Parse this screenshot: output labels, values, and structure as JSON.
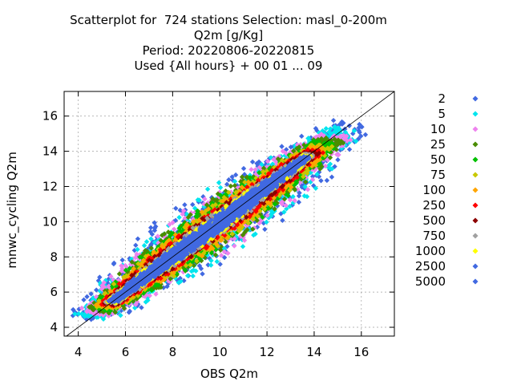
{
  "chart_data": {
    "type": "scatter",
    "title_lines": [
      "Scatterplot for  724 stations Selection: masl_0-200m",
      "Q2m [g/Kg]",
      "Period: 20220806-20220815",
      "Used {All hours} + 00 01 ... 09"
    ],
    "xlabel": "OBS Q2m",
    "ylabel": "mnwc_cycling Q2m",
    "xlim": [
      3.4,
      17.4
    ],
    "ylim": [
      3.5,
      17.4
    ],
    "xticks": [
      4,
      6,
      8,
      10,
      12,
      14,
      16
    ],
    "yticks": [
      4,
      6,
      8,
      10,
      12,
      14,
      16
    ],
    "grid": true,
    "reference_line": "y = x",
    "legend_placement": "right",
    "legend_title": "",
    "series": [
      {
        "name": "2",
        "color": "#4169e1",
        "band": [
          6.0,
          1.6
        ],
        "n": 110
      },
      {
        "name": "5",
        "color": "#00e5ee",
        "band": [
          5.2,
          1.45
        ],
        "n": 140
      },
      {
        "name": "10",
        "color": "#ee82ee",
        "band": [
          4.3,
          1.3
        ],
        "n": 150
      },
      {
        "name": "25",
        "color": "#4a8c00",
        "band": [
          3.6,
          1.15
        ],
        "n": 170
      },
      {
        "name": "50",
        "color": "#00c000",
        "band": [
          3.0,
          1.0
        ],
        "n": 170
      },
      {
        "name": "75",
        "color": "#c8c800",
        "band": [
          2.6,
          0.9
        ],
        "n": 160
      },
      {
        "name": "100",
        "color": "#ffa500",
        "band": [
          2.25,
          0.82
        ],
        "n": 160
      },
      {
        "name": "250",
        "color": "#ff0000",
        "band": [
          1.85,
          0.72
        ],
        "n": 170
      },
      {
        "name": "500",
        "color": "#8b0000",
        "band": [
          1.5,
          0.6
        ],
        "n": 160
      },
      {
        "name": "750",
        "color": "#a0a0a0",
        "band": [
          1.15,
          0.52
        ],
        "n": 160
      },
      {
        "name": "1000",
        "color": "#ffff00",
        "band": [
          0.95,
          0.46
        ],
        "n": 150
      },
      {
        "name": "2500",
        "color": "#4169e1",
        "band": [
          0.8,
          0.4
        ],
        "n": 200
      },
      {
        "name": "5000",
        "color": "#4169e1",
        "band": [
          0.65,
          0.3
        ],
        "n": 150
      }
    ]
  }
}
